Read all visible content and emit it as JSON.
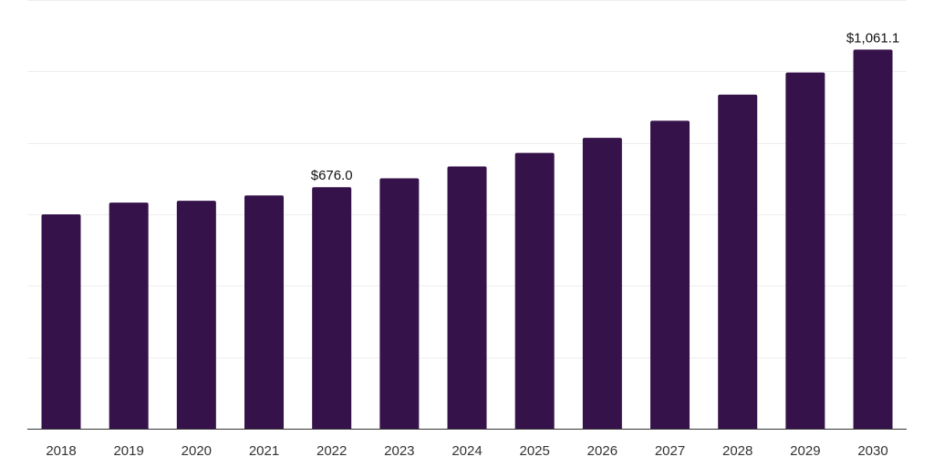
{
  "chart_data": {
    "type": "bar",
    "categories": [
      "2018",
      "2019",
      "2020",
      "2021",
      "2022",
      "2023",
      "2024",
      "2025",
      "2026",
      "2027",
      "2028",
      "2029",
      "2030"
    ],
    "values": [
      600.0,
      633.0,
      638.0,
      653.0,
      676.0,
      701.0,
      734.0,
      772.0,
      814.0,
      862.0,
      935.0,
      997.0,
      1061.1
    ],
    "data_labels": [
      {
        "index": 4,
        "text": "$676.0"
      },
      {
        "index": 12,
        "text": "$1,061.1"
      }
    ],
    "title": "",
    "xlabel": "",
    "ylabel": "",
    "ylim": [
      0,
      1200
    ],
    "grid": true,
    "y_tick_labels_visible": false,
    "colors": {
      "bar": "#36124a",
      "grid": "#eeeeee",
      "axis": "#333333"
    }
  }
}
